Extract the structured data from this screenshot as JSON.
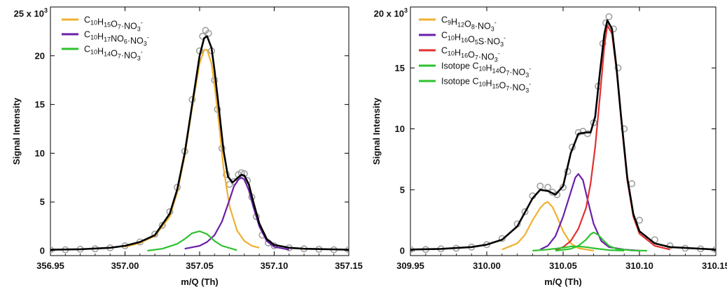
{
  "chart_data": [
    {
      "type": "line",
      "xlabel": "m/Q (Th)",
      "ylabel": "Signal Intensity",
      "scale_note": {
        "base": "25 x 10",
        "exp": "3"
      },
      "xlim": [
        356.95,
        357.15
      ],
      "ylim": [
        -0.5,
        25
      ],
      "xticks": [
        "356.95",
        "357.00",
        "357.05",
        "357.10",
        "357.15"
      ],
      "xtick_values": [
        356.95,
        357.0,
        357.05,
        357.1,
        357.15
      ],
      "yticks": [
        "0",
        "5",
        "10",
        "15",
        "20"
      ],
      "ytick_values": [
        0,
        5,
        10,
        15,
        20
      ],
      "grid": false,
      "legend_placement": "top-left",
      "data_points": {
        "color": "#a0a0a0",
        "x": [
          356.95,
          356.96,
          356.97,
          356.98,
          356.99,
          357.0,
          357.01,
          357.02,
          357.025,
          357.03,
          357.035,
          357.04,
          357.045,
          357.05,
          357.052,
          357.054,
          357.056,
          357.058,
          357.06,
          357.062,
          357.065,
          357.068,
          357.07,
          357.073,
          357.076,
          357.078,
          357.08,
          357.082,
          357.085,
          357.088,
          357.092,
          357.096,
          357.1,
          357.11,
          357.12,
          357.13,
          357.14,
          357.15
        ],
        "y": [
          0.1,
          0.1,
          0.15,
          0.2,
          0.3,
          0.5,
          0.9,
          1.7,
          2.6,
          4.0,
          6.5,
          10.2,
          15.5,
          20.5,
          22.0,
          22.6,
          22.3,
          20.5,
          17.5,
          14.5,
          10.5,
          7.8,
          6.8,
          7.1,
          7.8,
          8.0,
          7.9,
          7.2,
          5.5,
          3.5,
          1.6,
          0.8,
          0.5,
          0.3,
          0.2,
          0.15,
          0.1,
          0.1
        ]
      },
      "fit": {
        "color": "#000000",
        "x": [
          356.95,
          356.97,
          356.99,
          357.0,
          357.01,
          357.02,
          357.03,
          357.035,
          357.04,
          357.045,
          357.05,
          357.053,
          357.055,
          357.058,
          357.06,
          357.063,
          357.066,
          357.069,
          357.072,
          357.075,
          357.078,
          357.08,
          357.083,
          357.086,
          357.09,
          357.095,
          357.1,
          357.11,
          357.12,
          357.15
        ],
        "y": [
          0.1,
          0.15,
          0.3,
          0.5,
          0.9,
          1.6,
          3.8,
          6.3,
          10.0,
          15.0,
          20.0,
          21.8,
          22.0,
          20.8,
          18.5,
          14.5,
          10.3,
          7.6,
          7.0,
          7.4,
          7.8,
          7.7,
          6.8,
          5.0,
          2.8,
          1.2,
          0.6,
          0.3,
          0.2,
          0.1
        ]
      },
      "series": [
        {
          "name_parts": [
            [
              "C",
              ""
            ],
            [
              "10",
              "sub"
            ],
            [
              "H",
              ""
            ],
            [
              "15",
              "sub"
            ],
            [
              "O",
              ""
            ],
            [
              "7",
              "sub"
            ],
            [
              "·NO",
              ""
            ],
            [
              "3",
              "sub"
            ],
            [
              "-",
              "sup"
            ]
          ],
          "color": "#f0b030",
          "x": [
            357.0,
            357.01,
            357.02,
            357.03,
            357.035,
            357.04,
            357.045,
            357.05,
            357.053,
            357.055,
            357.058,
            357.06,
            357.063,
            357.066,
            357.07,
            357.075,
            357.08,
            357.085,
            357.09
          ],
          "y": [
            0.4,
            0.8,
            1.5,
            3.5,
            6.0,
            9.7,
            14.7,
            19.2,
            20.6,
            20.6,
            19.2,
            17.0,
            13.0,
            8.5,
            4.6,
            2.1,
            1.0,
            0.5,
            0.3
          ]
        },
        {
          "name_parts": [
            [
              "C",
              ""
            ],
            [
              "10",
              "sub"
            ],
            [
              "H",
              ""
            ],
            [
              "17",
              "sub"
            ],
            [
              "NO",
              ""
            ],
            [
              "6",
              "sub"
            ],
            [
              "·NO",
              ""
            ],
            [
              "3",
              "sub"
            ],
            [
              "-",
              "sup"
            ]
          ],
          "color": "#6a1fa8",
          "x": [
            357.04,
            357.05,
            357.055,
            357.06,
            357.065,
            357.07,
            357.073,
            357.076,
            357.078,
            357.08,
            357.083,
            357.086,
            357.09,
            357.095,
            357.1,
            357.11
          ],
          "y": [
            0.2,
            0.5,
            0.9,
            1.6,
            3.0,
            5.2,
            6.6,
            7.3,
            7.5,
            7.3,
            6.2,
            4.5,
            2.5,
            1.0,
            0.4,
            0.1
          ]
        },
        {
          "name_parts": [
            [
              "C",
              ""
            ],
            [
              "10",
              "sub"
            ],
            [
              "H",
              ""
            ],
            [
              "14",
              "sub"
            ],
            [
              "O",
              ""
            ],
            [
              "7",
              "sub"
            ],
            [
              "·NO",
              ""
            ],
            [
              "3",
              "sub"
            ],
            [
              "-",
              "sup"
            ]
          ],
          "color": "#2ec22e",
          "x": [
            357.015,
            357.025,
            357.035,
            357.04,
            357.045,
            357.05,
            357.055,
            357.06,
            357.065,
            357.075
          ],
          "y": [
            0.0,
            0.2,
            0.7,
            1.2,
            1.8,
            2.0,
            1.7,
            1.0,
            0.5,
            0.05
          ]
        }
      ]
    },
    {
      "type": "line",
      "xlabel": "m/Q (Th)",
      "ylabel": "Signal Intensity",
      "scale_note": {
        "base": "20 x 10",
        "exp": "3"
      },
      "xlim": [
        309.95,
        310.15
      ],
      "ylim": [
        -0.4,
        20
      ],
      "xticks": [
        "309.95",
        "310.00",
        "310.05",
        "310.10",
        "310.15"
      ],
      "xtick_values": [
        309.95,
        310.0,
        310.05,
        310.1,
        310.15
      ],
      "yticks": [
        "0",
        "5",
        "10",
        "15"
      ],
      "ytick_values": [
        0,
        5,
        10,
        15
      ],
      "grid": false,
      "legend_placement": "top-left",
      "data_points": {
        "color": "#a0a0a0",
        "x": [
          309.95,
          309.96,
          309.97,
          309.98,
          309.99,
          310.0,
          310.01,
          310.02,
          310.025,
          310.03,
          310.035,
          310.04,
          310.043,
          310.046,
          310.05,
          310.053,
          310.056,
          310.06,
          310.063,
          310.066,
          310.07,
          310.073,
          310.076,
          310.078,
          310.08,
          310.083,
          310.086,
          310.09,
          310.095,
          310.1,
          310.11,
          310.12,
          310.13,
          310.14,
          310.15
        ],
        "y": [
          0.1,
          0.1,
          0.15,
          0.2,
          0.3,
          0.5,
          1.0,
          2.2,
          3.2,
          4.5,
          5.3,
          5.2,
          4.8,
          4.6,
          5.2,
          6.5,
          8.5,
          9.7,
          9.8,
          9.6,
          10.5,
          13.5,
          17.0,
          18.7,
          19.2,
          18.2,
          15.0,
          10.0,
          5.5,
          2.5,
          0.9,
          0.4,
          0.2,
          0.15,
          0.1
        ]
      },
      "fit": {
        "color": "#000000",
        "x": [
          309.95,
          309.97,
          309.99,
          310.0,
          310.01,
          310.02,
          310.03,
          310.035,
          310.04,
          310.045,
          310.05,
          310.055,
          310.06,
          310.065,
          310.068,
          310.071,
          310.074,
          310.077,
          310.079,
          310.082,
          310.085,
          310.088,
          310.092,
          310.096,
          310.1,
          310.11,
          310.12,
          310.15
        ],
        "y": [
          0.1,
          0.15,
          0.3,
          0.5,
          0.9,
          2.0,
          4.3,
          5.0,
          4.9,
          4.6,
          5.3,
          8.0,
          9.6,
          9.7,
          9.7,
          11.0,
          14.5,
          17.8,
          18.9,
          18.2,
          15.0,
          11.0,
          6.0,
          3.0,
          1.6,
          0.6,
          0.3,
          0.1
        ]
      },
      "series": [
        {
          "name_parts": [
            [
              "C",
              ""
            ],
            [
              "9",
              "sub"
            ],
            [
              "H",
              ""
            ],
            [
              "12",
              "sub"
            ],
            [
              "O",
              ""
            ],
            [
              "8",
              "sub"
            ],
            [
              "·NO",
              ""
            ],
            [
              "3",
              "sub"
            ],
            [
              "-",
              "sup"
            ]
          ],
          "color": "#f0b030",
          "x": [
            310.01,
            310.02,
            310.025,
            310.03,
            310.035,
            310.038,
            310.04,
            310.043,
            310.046,
            310.05,
            310.055,
            310.06,
            310.07
          ],
          "y": [
            0.1,
            0.6,
            1.3,
            2.5,
            3.5,
            3.9,
            4.0,
            3.6,
            2.8,
            1.6,
            0.6,
            0.2,
            0.0
          ]
        },
        {
          "name_parts": [
            [
              "C",
              ""
            ],
            [
              "10",
              "sub"
            ],
            [
              "H",
              ""
            ],
            [
              "16",
              "sub"
            ],
            [
              "O",
              ""
            ],
            [
              "5",
              "sub"
            ],
            [
              "S·NO",
              ""
            ],
            [
              "3",
              "sub"
            ],
            [
              "-",
              "sup"
            ]
          ],
          "color": "#6a1fa8",
          "x": [
            310.035,
            310.04,
            310.045,
            310.05,
            310.055,
            310.058,
            310.06,
            310.063,
            310.066,
            310.07,
            310.075,
            310.08,
            310.09,
            310.1
          ],
          "y": [
            0.1,
            0.4,
            1.2,
            2.8,
            4.8,
            6.0,
            6.3,
            5.8,
            4.2,
            2.2,
            0.8,
            0.3,
            0.1,
            0.0
          ]
        },
        {
          "name_parts": [
            [
              "C",
              ""
            ],
            [
              "10",
              "sub"
            ],
            [
              "H",
              ""
            ],
            [
              "16",
              "sub"
            ],
            [
              "O",
              ""
            ],
            [
              "7",
              "sub"
            ],
            [
              "·NO",
              ""
            ],
            [
              "3",
              "sub"
            ],
            [
              "-",
              "sup"
            ]
          ],
          "color": "#e03030",
          "x": [
            310.045,
            310.05,
            310.055,
            310.06,
            310.065,
            310.068,
            310.071,
            310.074,
            310.077,
            310.079,
            310.082,
            310.085,
            310.088,
            310.092,
            310.096,
            310.1,
            310.11,
            310.12
          ],
          "y": [
            0.05,
            0.3,
            0.8,
            1.8,
            3.5,
            5.5,
            8.5,
            12.5,
            16.8,
            18.5,
            17.8,
            14.8,
            10.8,
            5.8,
            2.8,
            1.4,
            0.4,
            0.1
          ]
        },
        {
          "name_parts": [
            [
              "Isotope C",
              ""
            ],
            [
              "10",
              "sub"
            ],
            [
              "H",
              ""
            ],
            [
              "14",
              "sub"
            ],
            [
              "O",
              ""
            ],
            [
              "7",
              "sub"
            ],
            [
              "·NO",
              ""
            ],
            [
              "3",
              "sub"
            ],
            [
              "-",
              "sup"
            ]
          ],
          "color": "#2ec22e",
          "x": [
            310.03,
            310.04,
            310.05,
            310.055,
            310.06,
            310.065,
            310.07,
            310.08,
            310.09
          ],
          "y": [
            0.0,
            0.1,
            0.25,
            0.35,
            0.35,
            0.3,
            0.2,
            0.05,
            0.0
          ]
        },
        {
          "name_parts": [
            [
              "Isotope C",
              ""
            ],
            [
              "10",
              "sub"
            ],
            [
              "H",
              ""
            ],
            [
              "15",
              "sub"
            ],
            [
              "O",
              ""
            ],
            [
              "7",
              "sub"
            ],
            [
              "·NO",
              ""
            ],
            [
              "3",
              "sub"
            ],
            [
              "-",
              "sup"
            ]
          ],
          "color": "#2ec22e",
          "x": [
            310.045,
            310.055,
            310.06,
            310.065,
            310.068,
            310.07,
            310.073,
            310.076,
            310.08,
            310.085,
            310.095,
            310.105
          ],
          "y": [
            0.0,
            0.15,
            0.4,
            0.9,
            1.35,
            1.5,
            1.3,
            0.9,
            0.4,
            0.15,
            0.02,
            0.0
          ]
        }
      ]
    }
  ]
}
